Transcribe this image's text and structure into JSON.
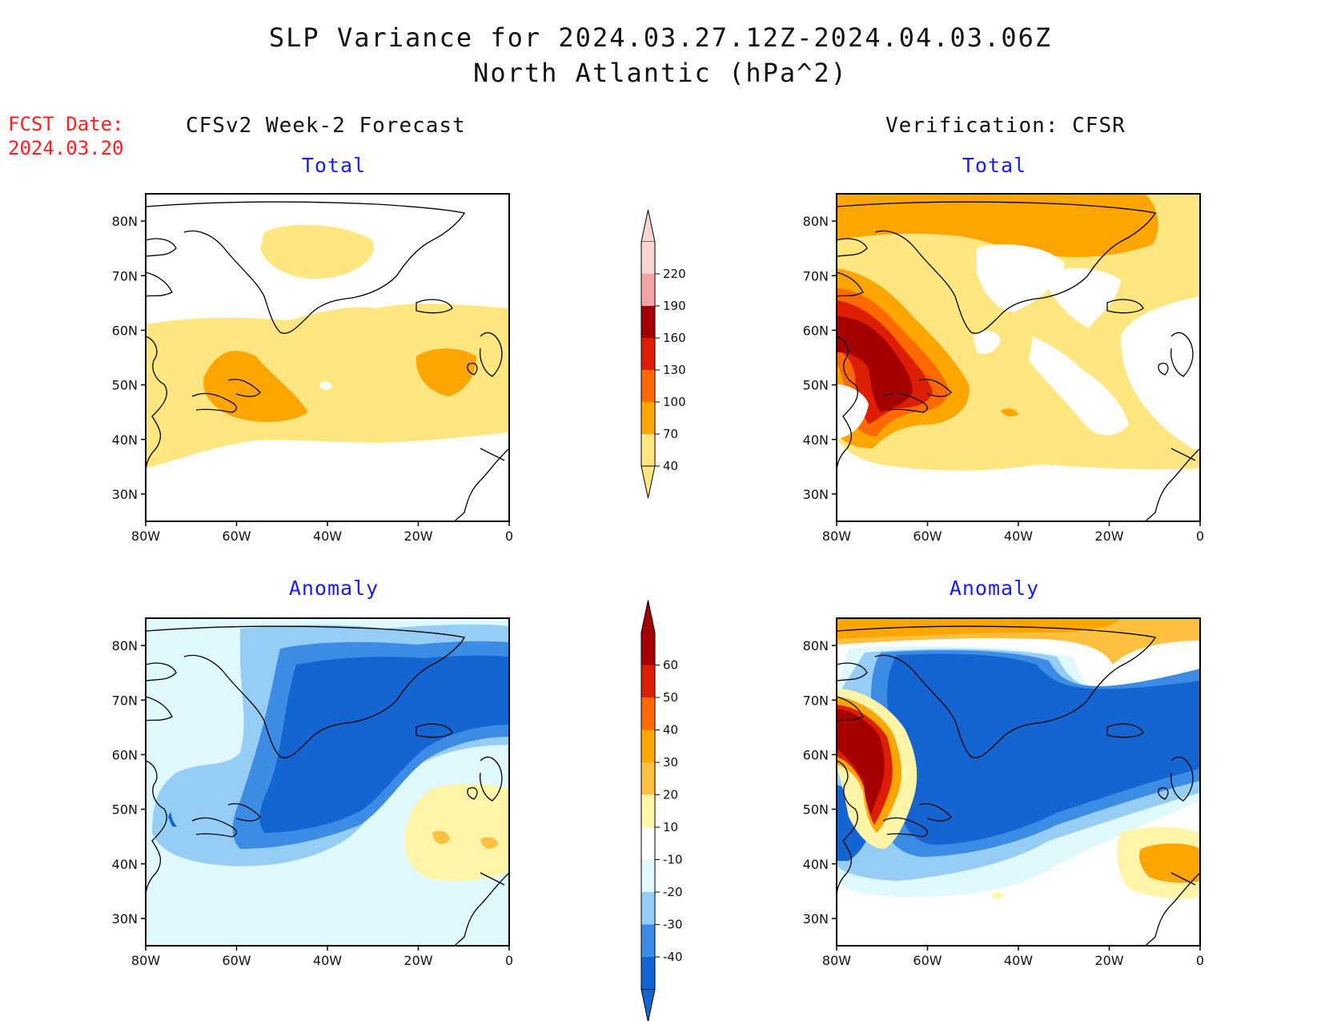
{
  "title": {
    "line1": "SLP Variance for 2024.03.27.12Z-2024.04.03.06Z",
    "line2": "North Atlantic (hPa^2)"
  },
  "fcst": {
    "label": "FCST Date:",
    "date": "2024.03.20"
  },
  "columns": {
    "left": "CFSv2 Week-2 Forecast",
    "right": "Verification: CFSR"
  },
  "panels": {
    "tl": "Total",
    "tr": "Total",
    "bl": "Anomaly",
    "br": "Anomaly"
  },
  "axes": {
    "lon_ticks": [
      "80W",
      "60W",
      "40W",
      "20W",
      "0"
    ],
    "lat_ticks": [
      "80N",
      "70N",
      "60N",
      "50N",
      "40N",
      "30N"
    ],
    "lon_range": [
      -80,
      0
    ],
    "lat_range": [
      25,
      85
    ]
  },
  "colorbars": {
    "total": {
      "levels": [
        "220",
        "190",
        "160",
        "130",
        "100",
        "70",
        "40"
      ],
      "colors": [
        "#f7d5d0",
        "#f2a3a3",
        "#a50000",
        "#dc1e05",
        "#ff6a00",
        "#ffa500",
        "#ffe680"
      ]
    },
    "anomaly": {
      "levels": [
        "60",
        "50",
        "40",
        "30",
        "20",
        "10",
        "-10",
        "-20",
        "-30",
        "-40"
      ],
      "colors": [
        "#a50000",
        "#dc1e05",
        "#ff6a00",
        "#ffa500",
        "#ffc040",
        "#fff5a8",
        "#ffffff",
        "#e0f8ff",
        "#96cdf5",
        "#3c8ce6",
        "#1464d2"
      ]
    }
  }
}
